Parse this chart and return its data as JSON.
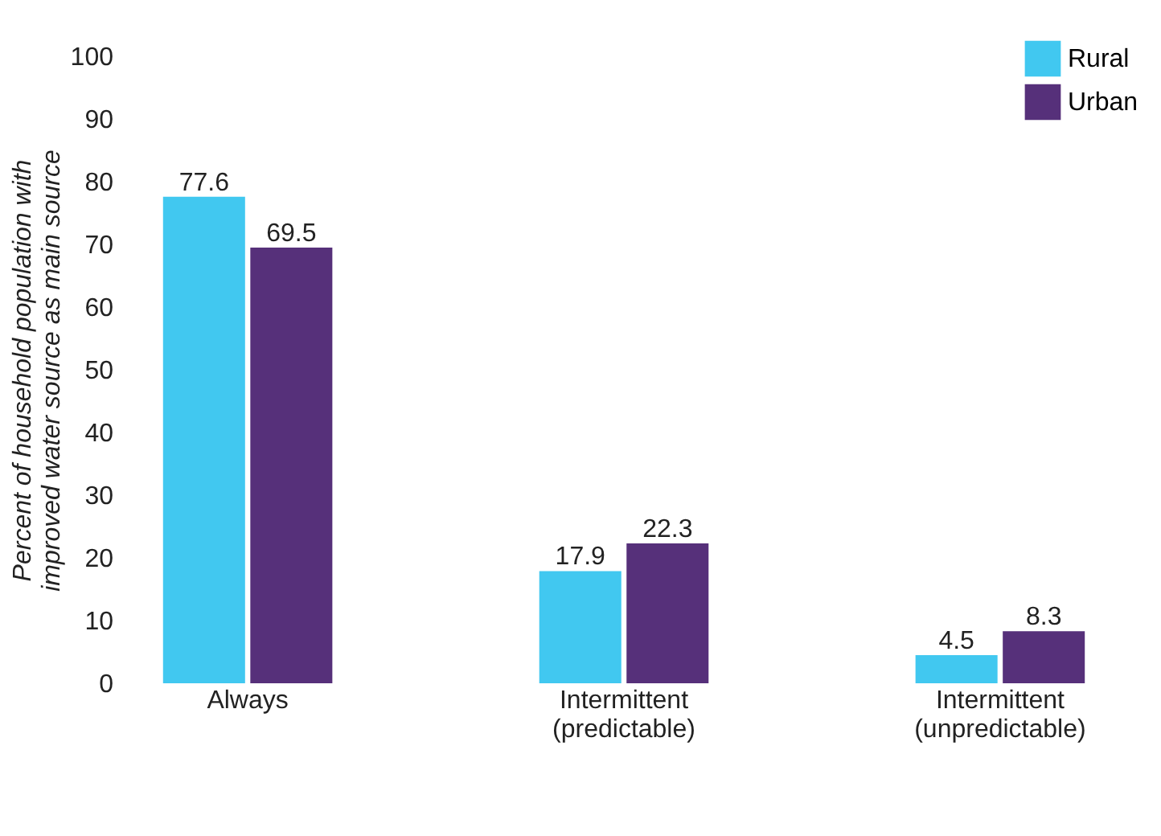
{
  "chart_data": {
    "type": "bar",
    "ylabel": "Percent of household population with improved water source as main source",
    "categories": [
      "Always",
      "Intermittent (predictable)",
      "Intermittent (unpredictable)"
    ],
    "series": [
      {
        "name": "Rural",
        "color": "#41c8f0",
        "values": [
          77.6,
          17.9,
          4.5
        ]
      },
      {
        "name": "Urban",
        "color": "#56307a",
        "values": [
          69.5,
          22.3,
          8.3
        ]
      }
    ],
    "ylim": [
      0,
      100
    ],
    "yticks": [
      0,
      10,
      20,
      30,
      40,
      50,
      60,
      70,
      80,
      90,
      100
    ],
    "data_labels": true,
    "legend": "top right",
    "grid": false
  }
}
